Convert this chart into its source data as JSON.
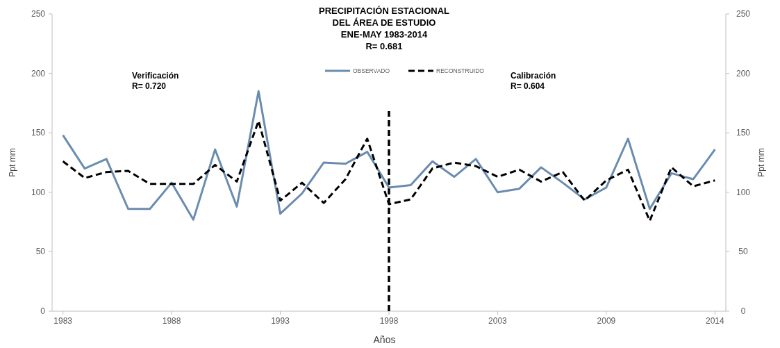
{
  "chart_data": {
    "type": "line",
    "title": "PRECIPITACIÓN  ESTACIONAL\nDEL ÁREA DE ESTUDIO\nENE-MAY 1983-2014\nR= 0.681",
    "xlabel": "Años",
    "ylabel": "Ppt mm",
    "y2label": "Ppt mm",
    "categories": [
      "1983",
      null,
      null,
      null,
      null,
      "1988",
      null,
      null,
      null,
      null,
      "1993",
      null,
      null,
      null,
      null,
      "1998",
      null,
      null,
      null,
      null,
      "2003",
      null,
      null,
      null,
      null,
      "2009",
      null,
      null,
      null,
      null,
      "2014"
    ],
    "series": [
      {
        "name": "OBSERVADO",
        "color": "#6a8caf",
        "line_style": "solid",
        "values": [
          148,
          120,
          128,
          86,
          86,
          108,
          77,
          136,
          88,
          185,
          82,
          99,
          125,
          124,
          134,
          104,
          106,
          126,
          113,
          128,
          100,
          103,
          121,
          108,
          94,
          104,
          145,
          86,
          116,
          111,
          136
        ]
      },
      {
        "name": "RECONSTRUIDO",
        "color": "#000000",
        "line_style": "dashed",
        "values": [
          126,
          112,
          117,
          118,
          107,
          107,
          107,
          123,
          109,
          160,
          93,
          108,
          91,
          111,
          145,
          90,
          94,
          120,
          125,
          122,
          113,
          119,
          109,
          117,
          93,
          110,
          119,
          76,
          121,
          105,
          110
        ]
      }
    ],
    "ylim": [
      0,
      250
    ],
    "yticks": [
      0,
      50,
      100,
      150,
      200,
      250
    ],
    "y2lim": [
      0,
      250
    ],
    "y2ticks": [
      0,
      50,
      100,
      150,
      200,
      250
    ],
    "ref_lines": [
      {
        "axis": "x",
        "value": "1998",
        "color": "#000000",
        "line_style": "dashed"
      }
    ],
    "annotations": [
      "Verificación\nR= 0.720",
      "Calibración\nR= 0.604"
    ],
    "legend": "top",
    "grid": false,
    "marker": "none"
  }
}
